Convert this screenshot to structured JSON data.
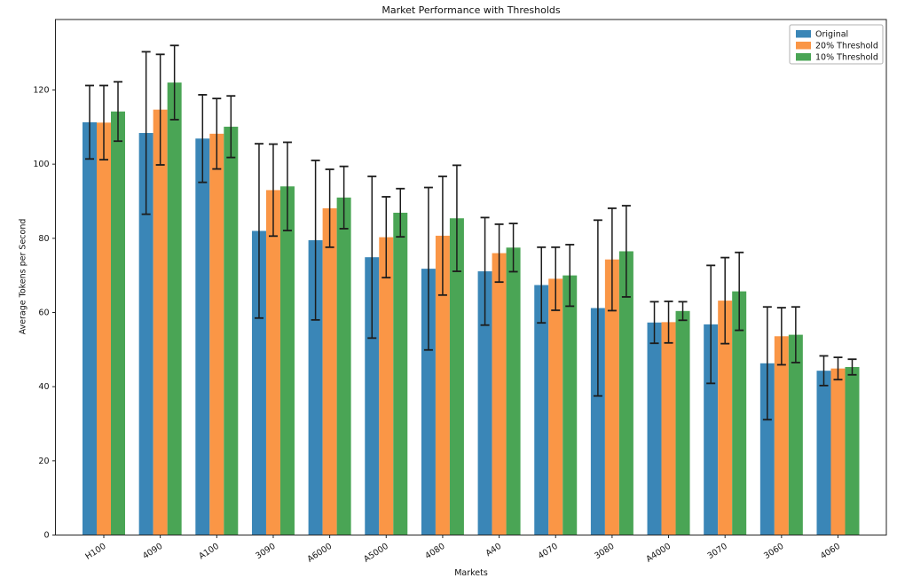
{
  "chart_data": {
    "type": "bar",
    "title": "Market Performance with Thresholds",
    "xlabel": "Markets",
    "ylabel": "Average Tokens per Second",
    "ylim": [
      0,
      139
    ],
    "yticks": [
      0,
      20,
      40,
      60,
      80,
      100,
      120
    ],
    "grid": false,
    "legend_position": "upper right",
    "error_bar_color": "#1c1c1c",
    "categories": [
      "H100",
      "4090",
      "A100",
      "3090",
      "A6000",
      "A5000",
      "4080",
      "A40",
      "4070",
      "3080",
      "A4000",
      "3070",
      "3060",
      "4060"
    ],
    "series": [
      {
        "name": "Original",
        "color": "#3a86b7",
        "values": [
          111.3,
          108.4,
          106.9,
          82.0,
          79.5,
          74.9,
          71.8,
          71.1,
          67.4,
          61.2,
          57.3,
          56.8,
          46.3,
          44.3
        ],
        "errors": [
          9.9,
          21.9,
          11.8,
          23.5,
          21.5,
          21.8,
          21.9,
          14.5,
          10.2,
          23.7,
          5.6,
          15.9,
          15.2,
          4.0
        ]
      },
      {
        "name": "20% Threshold",
        "color": "#fa9646",
        "values": [
          111.2,
          114.7,
          108.2,
          93.0,
          88.1,
          80.3,
          80.7,
          76.0,
          69.1,
          74.3,
          57.4,
          63.2,
          53.6,
          44.9
        ],
        "errors": [
          10.0,
          14.9,
          9.5,
          12.4,
          10.5,
          10.9,
          16.0,
          7.8,
          8.5,
          13.8,
          5.6,
          11.6,
          7.7,
          3.0
        ]
      },
      {
        "name": "10% Threshold",
        "color": "#4aa555",
        "values": [
          114.2,
          122.0,
          110.1,
          94.0,
          91.0,
          86.9,
          85.4,
          77.5,
          70.0,
          76.5,
          60.4,
          65.7,
          54.0,
          45.3
        ],
        "errors": [
          8.0,
          10.0,
          8.3,
          11.9,
          8.4,
          6.5,
          14.3,
          6.5,
          8.3,
          12.3,
          2.5,
          10.5,
          7.5,
          2.1
        ]
      }
    ]
  }
}
